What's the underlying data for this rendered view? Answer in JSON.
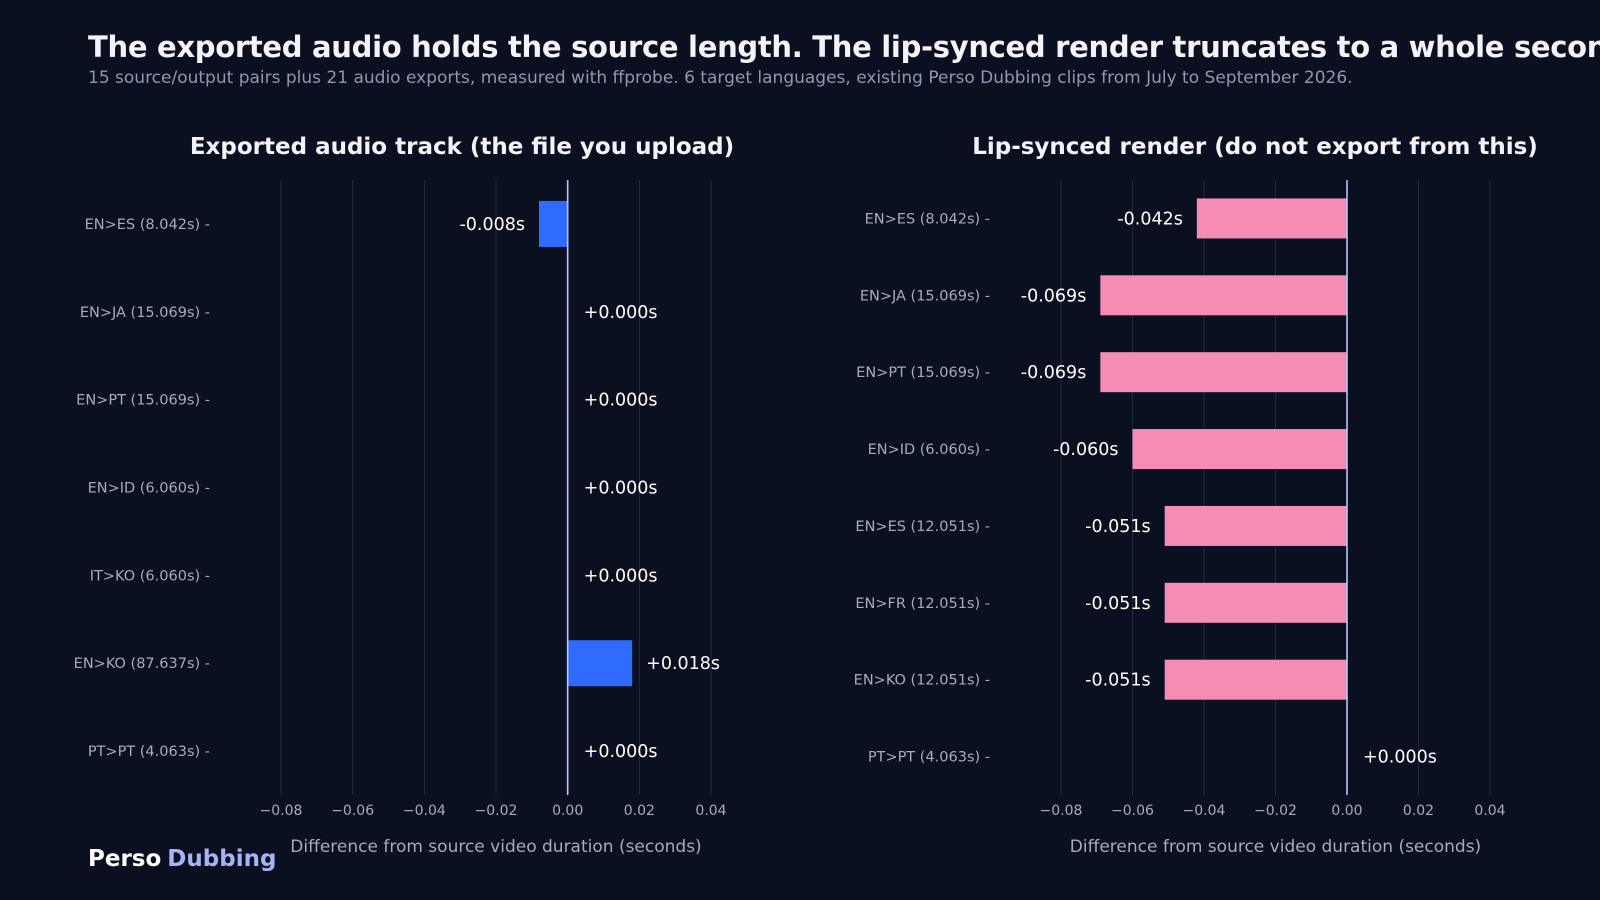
{
  "title": "The exported audio holds the source length. The lip-synced render truncates to a whole second.",
  "subtitle": "15 source/output pairs plus 21 audio exports, measured with ffprobe. 6 target languages, existing Perso Dubbing clips from July to September 2026.",
  "brand": {
    "part1": "Perso",
    "part2": "Dubbing"
  },
  "colors": {
    "background": "#0b1020",
    "audio_bar": "#2f6bff",
    "render_bar": "#f48cb4",
    "zero_line": "#b8c4ff",
    "grid": "#232a3d"
  },
  "chart_data": [
    {
      "type": "bar",
      "orientation": "horizontal",
      "title": "Exported audio track  (the file you upload)",
      "xlabel": "Difference from source video duration (seconds)",
      "xlim": [
        -0.08,
        0.04
      ],
      "xticks": [
        "−0.08",
        "−0.06",
        "−0.04",
        "−0.02",
        "0.00",
        "0.02",
        "0.04"
      ],
      "xtick_values": [
        -0.08,
        -0.06,
        -0.04,
        -0.02,
        0.0,
        0.02,
        0.04
      ],
      "grid": true,
      "categories": [
        "EN>ES  (8.042s)",
        "EN>JA  (15.069s)",
        "EN>PT  (15.069s)",
        "EN>ID  (6.060s)",
        "IT>KO  (6.060s)",
        "EN>KO  (87.637s)",
        "PT>PT  (4.063s)"
      ],
      "values": [
        -0.008,
        0.0,
        0.0,
        0.0,
        0.0,
        0.018,
        0.0
      ],
      "data_labels": [
        "-0.008s",
        "+0.000s",
        "+0.000s",
        "+0.000s",
        "+0.000s",
        "+0.018s",
        "+0.000s"
      ],
      "color": "#2f6bff"
    },
    {
      "type": "bar",
      "orientation": "horizontal",
      "title": "Lip-synced render  (do not export from this)",
      "xlabel": "Difference from source video duration (seconds)",
      "xlim": [
        -0.08,
        0.04
      ],
      "xticks": [
        "−0.08",
        "−0.06",
        "−0.04",
        "−0.02",
        "0.00",
        "0.02",
        "0.04"
      ],
      "xtick_values": [
        -0.08,
        -0.06,
        -0.04,
        -0.02,
        0.0,
        0.02,
        0.04
      ],
      "grid": true,
      "categories": [
        "EN>ES  (8.042s)",
        "EN>JA  (15.069s)",
        "EN>PT  (15.069s)",
        "EN>ID  (6.060s)",
        "EN>ES  (12.051s)",
        "EN>FR  (12.051s)",
        "EN>KO  (12.051s)",
        "PT>PT  (4.063s)"
      ],
      "values": [
        -0.042,
        -0.069,
        -0.069,
        -0.06,
        -0.051,
        -0.051,
        -0.051,
        0.0
      ],
      "data_labels": [
        "-0.042s",
        "-0.069s",
        "-0.069s",
        "-0.060s",
        "-0.051s",
        "-0.051s",
        "-0.051s",
        "+0.000s"
      ],
      "color": "#f48cb4"
    }
  ]
}
